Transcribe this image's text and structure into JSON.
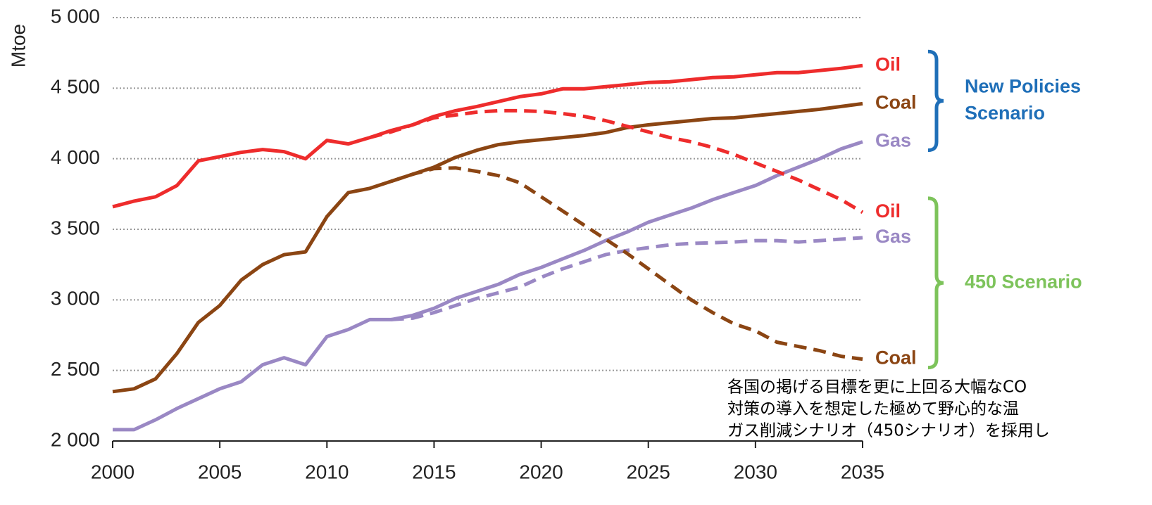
{
  "chart_data": {
    "type": "line",
    "y_label": "Mtoe",
    "x": [
      2000,
      2001,
      2002,
      2003,
      2004,
      2005,
      2006,
      2007,
      2008,
      2009,
      2010,
      2011,
      2012,
      2013,
      2014,
      2015,
      2016,
      2017,
      2018,
      2019,
      2020,
      2021,
      2022,
      2023,
      2024,
      2025,
      2026,
      2027,
      2028,
      2029,
      2030,
      2031,
      2032,
      2033,
      2034,
      2035
    ],
    "xlim": [
      2000,
      2035
    ],
    "xticks": [
      2000,
      2005,
      2010,
      2015,
      2020,
      2025,
      2030,
      2035
    ],
    "ylim": [
      2000,
      5000
    ],
    "yticks": [
      {
        "value": 2000,
        "label": "2 000"
      },
      {
        "value": 2500,
        "label": "2 500"
      },
      {
        "value": 3000,
        "label": "3 000"
      },
      {
        "value": 3500,
        "label": "3 500"
      },
      {
        "value": 4000,
        "label": "4 000"
      },
      {
        "value": 4500,
        "label": "4 500"
      },
      {
        "value": 5000,
        "label": "5 000"
      }
    ],
    "grid": true,
    "series": [
      {
        "name": "Oil",
        "color": "#ee2c2c",
        "dashed": false,
        "group": 0,
        "values": [
          3660,
          3700,
          3730,
          3810,
          3985,
          4015,
          4045,
          4065,
          4050,
          4000,
          4130,
          4105,
          4150,
          4200,
          4240,
          4300,
          4340,
          4370,
          4405,
          4440,
          4460,
          4495,
          4495,
          4510,
          4525,
          4540,
          4545,
          4560,
          4575,
          4580,
          4595,
          4610,
          4610,
          4625,
          4640,
          4660
        ]
      },
      {
        "name": "Coal",
        "color": "#8b4513",
        "dashed": false,
        "group": 0,
        "values": [
          2350,
          2370,
          2440,
          2620,
          2840,
          2960,
          3140,
          3250,
          3320,
          3340,
          3590,
          3760,
          3790,
          3840,
          3890,
          3940,
          4010,
          4060,
          4100,
          4120,
          4135,
          4150,
          4165,
          4185,
          4220,
          4240,
          4255,
          4270,
          4285,
          4290,
          4305,
          4320,
          4335,
          4350,
          4370,
          4390
        ]
      },
      {
        "name": "Gas",
        "color": "#9a88c4",
        "dashed": false,
        "group": 0,
        "values": [
          2080,
          2080,
          2150,
          2230,
          2300,
          2370,
          2420,
          2540,
          2590,
          2540,
          2740,
          2790,
          2860,
          2860,
          2890,
          2940,
          3010,
          3060,
          3110,
          3180,
          3230,
          3290,
          3350,
          3420,
          3480,
          3550,
          3600,
          3650,
          3710,
          3760,
          3810,
          3880,
          3940,
          4000,
          4070,
          4120
        ]
      },
      {
        "name": "Oil",
        "color": "#ee2c2c",
        "dashed": true,
        "group": 1,
        "values": [
          null,
          null,
          null,
          null,
          null,
          null,
          null,
          null,
          null,
          null,
          null,
          null,
          4150,
          4190,
          4240,
          4290,
          4310,
          4330,
          4340,
          4340,
          4335,
          4320,
          4300,
          4270,
          4230,
          4190,
          4150,
          4120,
          4080,
          4030,
          3970,
          3910,
          3850,
          3780,
          3710,
          3620
        ]
      },
      {
        "name": "Gas",
        "color": "#9a88c4",
        "dashed": true,
        "group": 1,
        "values": [
          null,
          null,
          null,
          null,
          null,
          null,
          null,
          null,
          null,
          null,
          null,
          null,
          null,
          2860,
          2870,
          2910,
          2960,
          3010,
          3050,
          3090,
          3160,
          3220,
          3270,
          3320,
          3350,
          3370,
          3390,
          3400,
          3405,
          3410,
          3420,
          3420,
          3410,
          3420,
          3430,
          3440
        ]
      },
      {
        "name": "Coal",
        "color": "#8b4513",
        "dashed": true,
        "group": 1,
        "values": [
          null,
          null,
          null,
          null,
          null,
          null,
          null,
          null,
          null,
          null,
          null,
          null,
          null,
          3840,
          3890,
          3930,
          3935,
          3910,
          3880,
          3830,
          3730,
          3630,
          3530,
          3430,
          3330,
          3220,
          3110,
          3000,
          2910,
          2830,
          2780,
          2700,
          2670,
          2640,
          2600,
          2580
        ]
      }
    ],
    "groups": [
      {
        "lines": [
          "New Policies",
          "Scenario"
        ],
        "color": "#1f6fb8"
      },
      {
        "lines": [
          "450 Scenario"
        ],
        "color": "#7dc35b"
      }
    ],
    "annotation": [
      "各国の掲げる目標を更に上回る大幅なCO",
      "対策の導入を想定した極めて野心的な温",
      "ガス削減シナリオ（450シナリオ）を採用し"
    ]
  }
}
